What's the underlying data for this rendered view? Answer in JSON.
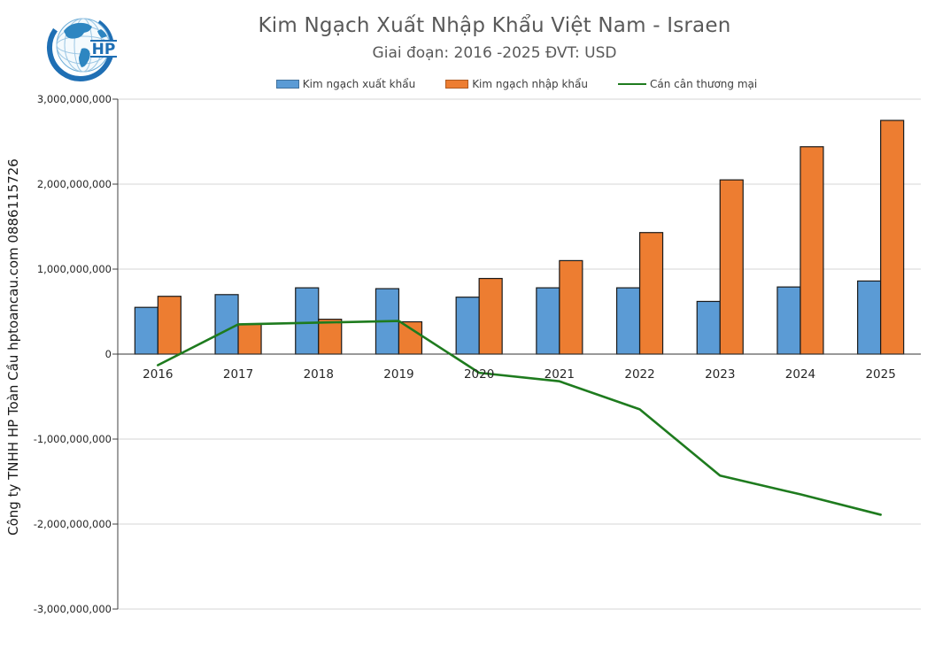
{
  "header": {
    "title": "Kim Ngạch Xuất Nhập Khẩu Việt Nam - Israen",
    "subtitle": "Giai đoạn: 2016 -2025  ĐVT: USD",
    "logo_text": "HP"
  },
  "watermark": "Công ty TNHH HP Toàn Cầu hptoancau.com 0886115726",
  "legend": [
    {
      "label": "Kim ngạch xuất khẩu",
      "color": "#5B9BD5",
      "border": "#41719C",
      "type": "bar"
    },
    {
      "label": "Kim ngạch nhập khẩu",
      "color": "#ED7D31",
      "border": "#AE5A21",
      "type": "bar"
    },
    {
      "label": "Cán cân thương mại",
      "color": "#1E7B1E",
      "border": "#1E7B1E",
      "type": "line"
    }
  ],
  "chart_data": {
    "type": "bar",
    "title": "Kim Ngạch Xuất Nhập Khẩu Việt Nam - Israen",
    "subtitle": "Giai đoạn: 2016 -2025  ĐVT: USD",
    "categories": [
      "2016",
      "2017",
      "2018",
      "2019",
      "2020",
      "2021",
      "2022",
      "2023",
      "2024",
      "2025"
    ],
    "series": [
      {
        "name": "Kim ngạch xuất khẩu",
        "type": "bar",
        "color": "#5B9BD5",
        "values": [
          550000000,
          700000000,
          780000000,
          770000000,
          670000000,
          780000000,
          780000000,
          620000000,
          790000000,
          860000000
        ]
      },
      {
        "name": "Kim ngạch nhập khẩu",
        "type": "bar",
        "color": "#ED7D31",
        "values": [
          680000000,
          350000000,
          410000000,
          380000000,
          890000000,
          1100000000,
          1430000000,
          2050000000,
          2440000000,
          2750000000
        ]
      },
      {
        "name": "Cán cân thương mại",
        "type": "line",
        "color": "#1E7B1E",
        "values": [
          -130000000,
          350000000,
          370000000,
          390000000,
          -220000000,
          -320000000,
          -650000000,
          -1430000000,
          -1650000000,
          -1890000000
        ]
      }
    ],
    "ylim": [
      -3000000000,
      3000000000
    ],
    "y_ticks": [
      "3,000,000,000",
      "2,000,000,000",
      "1,000,000,000",
      "0",
      "-1,000,000,000",
      "-2,000,000,000",
      "-3,000,000,000"
    ],
    "grid": true,
    "legend_position": "top",
    "xlabel": "",
    "ylabel": ""
  },
  "colors": {
    "export_bar": "#5B9BD5",
    "import_bar": "#ED7D31",
    "balance_line": "#1E7B1E",
    "gridline": "#D6D6D6",
    "axis": "#404040",
    "title_text": "#595959",
    "logo_blue": "#1F6FB4"
  }
}
